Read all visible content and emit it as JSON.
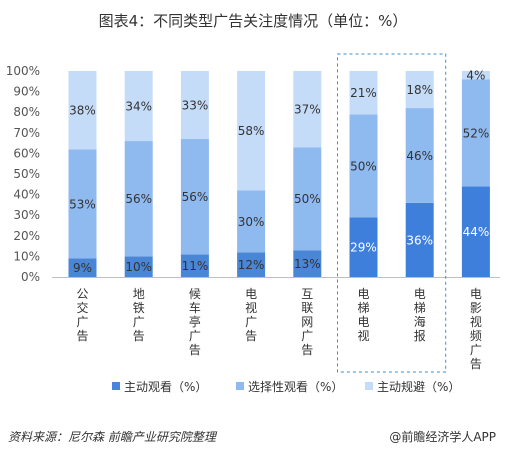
{
  "chart_data": {
    "type": "bar",
    "stacked": true,
    "title": "图表4：不同类型广告关注度情况（单位：%）",
    "categories": [
      "公交广告",
      "地铁广告",
      "候车亭广告",
      "电视广告",
      "互联网广告",
      "电梯电视",
      "电梯海报",
      "电影视频广告"
    ],
    "yticks": [
      "0%",
      "10%",
      "20%",
      "30%",
      "40%",
      "50%",
      "60%",
      "70%",
      "80%",
      "90%",
      "100%"
    ],
    "ylim": [
      0,
      100
    ],
    "grid": false,
    "legend_position": "bottom",
    "highlight": [
      "电梯电视",
      "电梯海报"
    ],
    "series": [
      {
        "name": "主动观看（%）",
        "values": [
          9,
          10,
          11,
          12,
          13,
          29,
          36,
          44
        ]
      },
      {
        "name": "选择性观看（%）",
        "values": [
          53,
          56,
          56,
          30,
          50,
          50,
          46,
          52
        ]
      },
      {
        "name": "主动规避（%）",
        "values": [
          38,
          34,
          33,
          58,
          37,
          21,
          18,
          4
        ]
      }
    ]
  },
  "colors": {
    "active_normal": "#4a86d6",
    "active_highlight": "#3f7fdc",
    "selective": "#8fbaf0",
    "avoid": "#c5dcf9",
    "frame": "#3a8fd0"
  },
  "footer": {
    "source": "资料来源：尼尔森 前瞻产业研究院整理",
    "brand": "@前瞻经济学人APP"
  }
}
